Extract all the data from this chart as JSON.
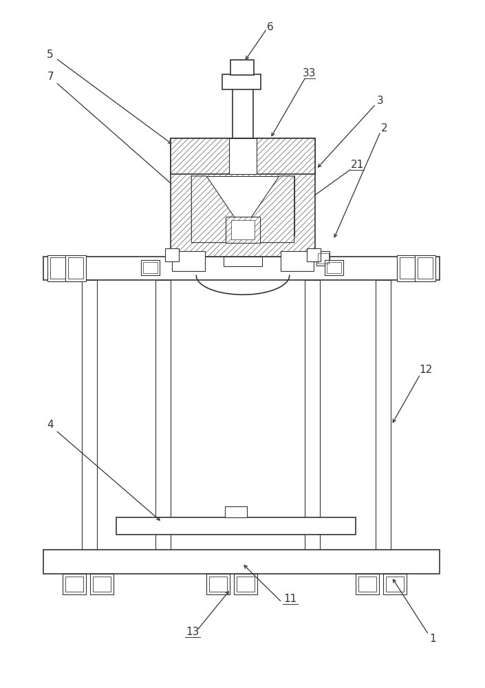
{
  "bg_color": "#ffffff",
  "lc": "#333333",
  "fig_width": 7.05,
  "fig_height": 10.0,
  "dpi": 100
}
